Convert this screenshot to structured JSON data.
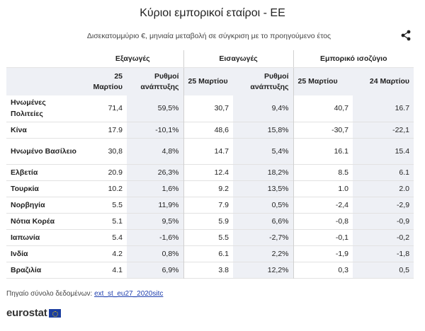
{
  "title": "Κύριοι εμπορικοί εταίροι - ΕΕ",
  "subtitle": "Δισεκατομμύριο €, μηνιαία μεταβολή σε σύγκριση με το προηγούμενο έτος",
  "share_icon": "share-icon",
  "table": {
    "groups": [
      "Εξαγωγές",
      "Εισαγωγές",
      "Εμπορικό ισοζύγιο"
    ],
    "subheaders": [
      "25 Μαρτίου",
      "Ρυθμοί ανάπτυξης",
      "25 Μαρτίου",
      "Ρυθμοί ανάπτυξης",
      "25 Μαρτίου",
      "24 Μαρτίου"
    ],
    "rows": [
      {
        "name": "Ηνωμένες Πολιτείες",
        "cells": [
          "71,4",
          "59,5%",
          "30,7",
          "9,4%",
          "40,7",
          "16.7"
        ]
      },
      {
        "name": "Κίνα",
        "cells": [
          "17.9",
          "-10,1%",
          "48,6",
          "15,8%",
          "-30,7",
          "-22,1"
        ]
      },
      {
        "name": "Ηνωμένο Βασίλειο",
        "cells": [
          "30,8",
          "4,8%",
          "14.7",
          "5,4%",
          "16.1",
          "15.4"
        ]
      },
      {
        "name": "Ελβετία",
        "cells": [
          "20.9",
          "26,3%",
          "12.4",
          "18,2%",
          "8.5",
          "6.1"
        ]
      },
      {
        "name": "Τουρκία",
        "cells": [
          "10.2",
          "1,6%",
          "9.2",
          "13,5%",
          "1.0",
          "2.0"
        ]
      },
      {
        "name": "Νορβηγία",
        "cells": [
          "5.5",
          "11,9%",
          "7.9",
          "0,5%",
          "-2,4",
          "-2,9"
        ]
      },
      {
        "name": "Νότια Κορέα",
        "cells": [
          "5.1",
          "9,5%",
          "5.9",
          "6,6%",
          "-0,8",
          "-0,9"
        ]
      },
      {
        "name": "Ιαπωνία",
        "cells": [
          "5.4",
          "-1,6%",
          "5.5",
          "-2,7%",
          "-0,1",
          "-0,2"
        ]
      },
      {
        "name": "Ινδία",
        "cells": [
          "4.2",
          "0,8%",
          "6.1",
          "2,2%",
          "-1,9",
          "-1,8"
        ]
      },
      {
        "name": "Βραζιλία",
        "cells": [
          "4.1",
          "6,9%",
          "3.8",
          "12,2%",
          "0,3",
          "0,5"
        ]
      }
    ]
  },
  "source": {
    "label": "Πηγαίο σύνολο δεδομένων:",
    "link": "ext_st_eu27_2020sitc"
  },
  "logo": {
    "text": "eurostat"
  },
  "colors": {
    "header_shade": "#eef0f5",
    "link": "#1f3fae",
    "flag": "#1b3ea0"
  }
}
